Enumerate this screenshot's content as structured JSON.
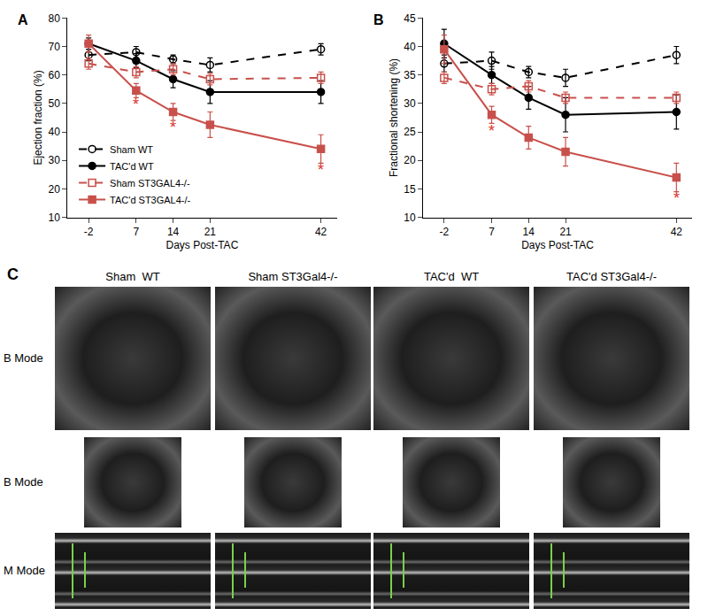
{
  "chart_data": [
    {
      "type": "line",
      "panel_label": "A",
      "x": [
        -2,
        7,
        14,
        21,
        42
      ],
      "xlabel": "Days Post-TAC",
      "ylabel": "Ejection fraction (%)",
      "xlim": [
        -6,
        45
      ],
      "xticks": [
        -2,
        7,
        14,
        21,
        42
      ],
      "ylim": [
        10,
        80
      ],
      "yticks": [
        10,
        20,
        30,
        40,
        50,
        60,
        70,
        80
      ],
      "grid": false,
      "legend": "lower left",
      "series": [
        {
          "name": "Sham WT",
          "color": "#000000",
          "line_style": "dash",
          "marker": "circle-open",
          "values": [
            67,
            68,
            65.5,
            63.5,
            69
          ],
          "error": [
            2,
            2,
            1.5,
            2.5,
            2
          ]
        },
        {
          "name": "TAC'd WT",
          "color": "#000000",
          "line_style": "solid",
          "marker": "circle",
          "values": [
            71,
            65,
            58.5,
            54,
            54
          ],
          "error": [
            2,
            2.5,
            3,
            4,
            4
          ]
        },
        {
          "name": "Sham ST3GAL4-/-",
          "color": "#c8504b",
          "line_style": "dash",
          "marker": "square-open",
          "values": [
            64,
            61,
            62,
            58.5,
            59
          ],
          "error": [
            2,
            2,
            2,
            2,
            2
          ]
        },
        {
          "name": "TAC'd ST3GAL4-/-",
          "color": "#c8504b",
          "line_style": "solid",
          "marker": "square",
          "values": [
            71,
            54.5,
            47,
            42.5,
            34
          ],
          "error": [
            3,
            2.5,
            3,
            4.5,
            5
          ]
        }
      ],
      "annotations": [
        {
          "x": 7,
          "y": 49.5,
          "text": "*",
          "color": "#e0302a"
        },
        {
          "x": 14,
          "y": 41.5,
          "text": "*",
          "color": "#e0302a"
        },
        {
          "x": 42,
          "y": 26.5,
          "text": "*",
          "color": "#e0302a"
        }
      ]
    },
    {
      "type": "line",
      "panel_label": "B",
      "x": [
        -2,
        7,
        14,
        21,
        42
      ],
      "xlabel": "Days Post-TAC",
      "ylabel": "Fractional shortening (%)",
      "xlim": [
        -6,
        45
      ],
      "xticks": [
        -2,
        7,
        14,
        21,
        42
      ],
      "ylim": [
        10,
        45
      ],
      "yticks": [
        10,
        15,
        20,
        25,
        30,
        35,
        40,
        45
      ],
      "grid": false,
      "series": [
        {
          "name": "Sham WT",
          "color": "#000000",
          "line_style": "dash",
          "marker": "circle-open",
          "values": [
            37,
            37.5,
            35.5,
            34.5,
            38.5
          ],
          "error": [
            1.5,
            1.5,
            1,
            1.5,
            1.5
          ]
        },
        {
          "name": "TAC'd WT",
          "color": "#000000",
          "line_style": "solid",
          "marker": "circle",
          "values": [
            40.5,
            35,
            31,
            28,
            28.5
          ],
          "error": [
            2.5,
            1.5,
            2,
            3,
            3
          ]
        },
        {
          "name": "Sham ST3GAL4-/-",
          "color": "#c8504b",
          "line_style": "dash",
          "marker": "square-open",
          "values": [
            34.5,
            32.5,
            33,
            31,
            31
          ],
          "error": [
            1,
            1,
            1,
            1,
            1
          ]
        },
        {
          "name": "TAC'd ST3GAL4-/-",
          "color": "#c8504b",
          "line_style": "solid",
          "marker": "square",
          "values": [
            39.5,
            28,
            24,
            21.5,
            17
          ],
          "error": [
            2.5,
            1.5,
            2,
            2.5,
            2.5
          ]
        }
      ],
      "annotations": [
        {
          "x": 7,
          "y": 25.2,
          "text": "*",
          "color": "#e0302a"
        },
        {
          "x": 42,
          "y": 13.3,
          "text": "*",
          "color": "#e0302a"
        }
      ]
    }
  ],
  "panel_c": {
    "panel_label": "C",
    "columns": [
      "Sham  WT",
      "Sham ST3Gal4-/-",
      "TAC'd  WT",
      "TAC'd ST3Gal4-/-"
    ],
    "rows": [
      "B Mode",
      "B Mode",
      "M Mode"
    ]
  }
}
